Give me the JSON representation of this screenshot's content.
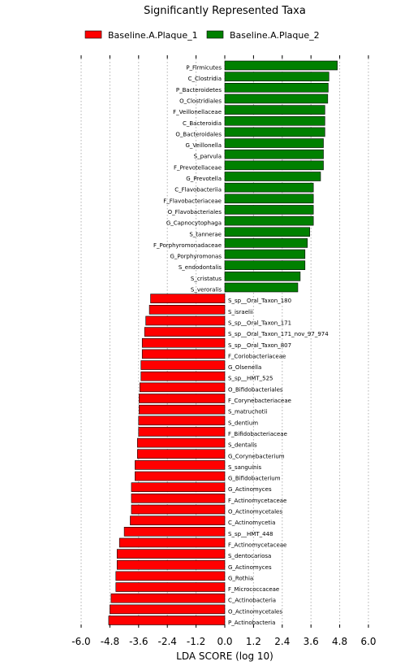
{
  "chart_data": {
    "type": "bar",
    "orientation": "horizontal",
    "title": "Significantly Represented Taxa",
    "xlabel": "LDA SCORE (log 10)",
    "ylabel": "",
    "xlim": [
      -6.0,
      6.0
    ],
    "xticks": [
      "-6.0",
      "-4.8",
      "-3.6",
      "-2.4",
      "-1.2",
      "0.0",
      "1.2",
      "2.4",
      "3.6",
      "4.8",
      "6.0"
    ],
    "grid": "vertical dotted",
    "legend_position": "top",
    "series": [
      {
        "name": "Baseline.A.Plaque_1",
        "color": "#ff0000"
      },
      {
        "name": "Baseline.A.Plaque_2",
        "color": "#008000"
      }
    ],
    "bars": [
      {
        "label": "P_Firmicutes",
        "value": 4.7,
        "group": 1
      },
      {
        "label": "C_Clostridia",
        "value": 4.35,
        "group": 1
      },
      {
        "label": "P_Bacteroidetes",
        "value": 4.32,
        "group": 1
      },
      {
        "label": "O_Clostridiales",
        "value": 4.3,
        "group": 1
      },
      {
        "label": "F_Veillonellaceae",
        "value": 4.18,
        "group": 1
      },
      {
        "label": "C_Bacteroidia",
        "value": 4.18,
        "group": 1
      },
      {
        "label": "O_Bacteroidales",
        "value": 4.18,
        "group": 1
      },
      {
        "label": "G_Veillonella",
        "value": 4.12,
        "group": 1
      },
      {
        "label": "S_parvula",
        "value": 4.12,
        "group": 1
      },
      {
        "label": "F_Prevotellaceae",
        "value": 4.12,
        "group": 1
      },
      {
        "label": "G_Prevotella",
        "value": 4.0,
        "group": 1
      },
      {
        "label": "C_Flavobacteriia",
        "value": 3.7,
        "group": 1
      },
      {
        "label": "F_Flavobacteriaceae",
        "value": 3.7,
        "group": 1
      },
      {
        "label": "O_Flavobacteriales",
        "value": 3.7,
        "group": 1
      },
      {
        "label": "G_Capnocytophaga",
        "value": 3.7,
        "group": 1
      },
      {
        "label": "S_tannerae",
        "value": 3.55,
        "group": 1
      },
      {
        "label": "F_Porphyromonadaceae",
        "value": 3.45,
        "group": 1
      },
      {
        "label": "G_Porphyromonas",
        "value": 3.35,
        "group": 1
      },
      {
        "label": "S_endodontalis",
        "value": 3.35,
        "group": 1
      },
      {
        "label": "S_cristatus",
        "value": 3.15,
        "group": 1
      },
      {
        "label": "S_veroralis",
        "value": 3.05,
        "group": 1
      },
      {
        "label": "S_sp__Oral_Taxon_180",
        "value": -3.1,
        "group": 0
      },
      {
        "label": "S_israelii",
        "value": -3.15,
        "group": 0
      },
      {
        "label": "S_sp__Oral_Taxon_171",
        "value": -3.3,
        "group": 0
      },
      {
        "label": "S_sp__Oral_Taxon_171_nov_97_974",
        "value": -3.35,
        "group": 0
      },
      {
        "label": "S_sp__Oral_Taxon_807",
        "value": -3.45,
        "group": 0
      },
      {
        "label": "F_Coriobacteriaceae",
        "value": -3.45,
        "group": 0
      },
      {
        "label": "G_Olsenella",
        "value": -3.5,
        "group": 0
      },
      {
        "label": "S_sp__HMT_525",
        "value": -3.5,
        "group": 0
      },
      {
        "label": "O_Bifidobacteriales",
        "value": -3.55,
        "group": 0
      },
      {
        "label": "F_Corynebacteriaceae",
        "value": -3.58,
        "group": 0
      },
      {
        "label": "S_matruchotii",
        "value": -3.58,
        "group": 0
      },
      {
        "label": "S_dentium",
        "value": -3.6,
        "group": 0
      },
      {
        "label": "F_Bifidobacteriaceae",
        "value": -3.6,
        "group": 0
      },
      {
        "label": "S_dentalis",
        "value": -3.65,
        "group": 0
      },
      {
        "label": "G_Corynebacterium",
        "value": -3.65,
        "group": 0
      },
      {
        "label": "S_sanguinis",
        "value": -3.75,
        "group": 0
      },
      {
        "label": "G_Bifidobacterium",
        "value": -3.75,
        "group": 0
      },
      {
        "label": "G_Actinomyces",
        "value": -3.9,
        "group": 0
      },
      {
        "label": "F_Actinomycetaceae",
        "value": -3.9,
        "group": 0
      },
      {
        "label": "O_Actinomycetales",
        "value": -3.9,
        "group": 0
      },
      {
        "label": "C_Actinomycetia",
        "value": -3.95,
        "group": 0
      },
      {
        "label": "S_sp__HMT_448",
        "value": -4.2,
        "group": 0
      },
      {
        "label": "F_Actinomycetaceae",
        "value": -4.4,
        "group": 0
      },
      {
        "label": "S_dentocariosa",
        "value": -4.5,
        "group": 0
      },
      {
        "label": "G_Actinomyces",
        "value": -4.5,
        "group": 0
      },
      {
        "label": "G_Rothia",
        "value": -4.55,
        "group": 0
      },
      {
        "label": "F_Micrococcaceae",
        "value": -4.55,
        "group": 0
      },
      {
        "label": "C_Actinobacteria",
        "value": -4.75,
        "group": 0
      },
      {
        "label": "O_Actinomycetales",
        "value": -4.8,
        "group": 0
      },
      {
        "label": "P_Actinobacteria",
        "value": -4.85,
        "group": 0
      }
    ]
  }
}
